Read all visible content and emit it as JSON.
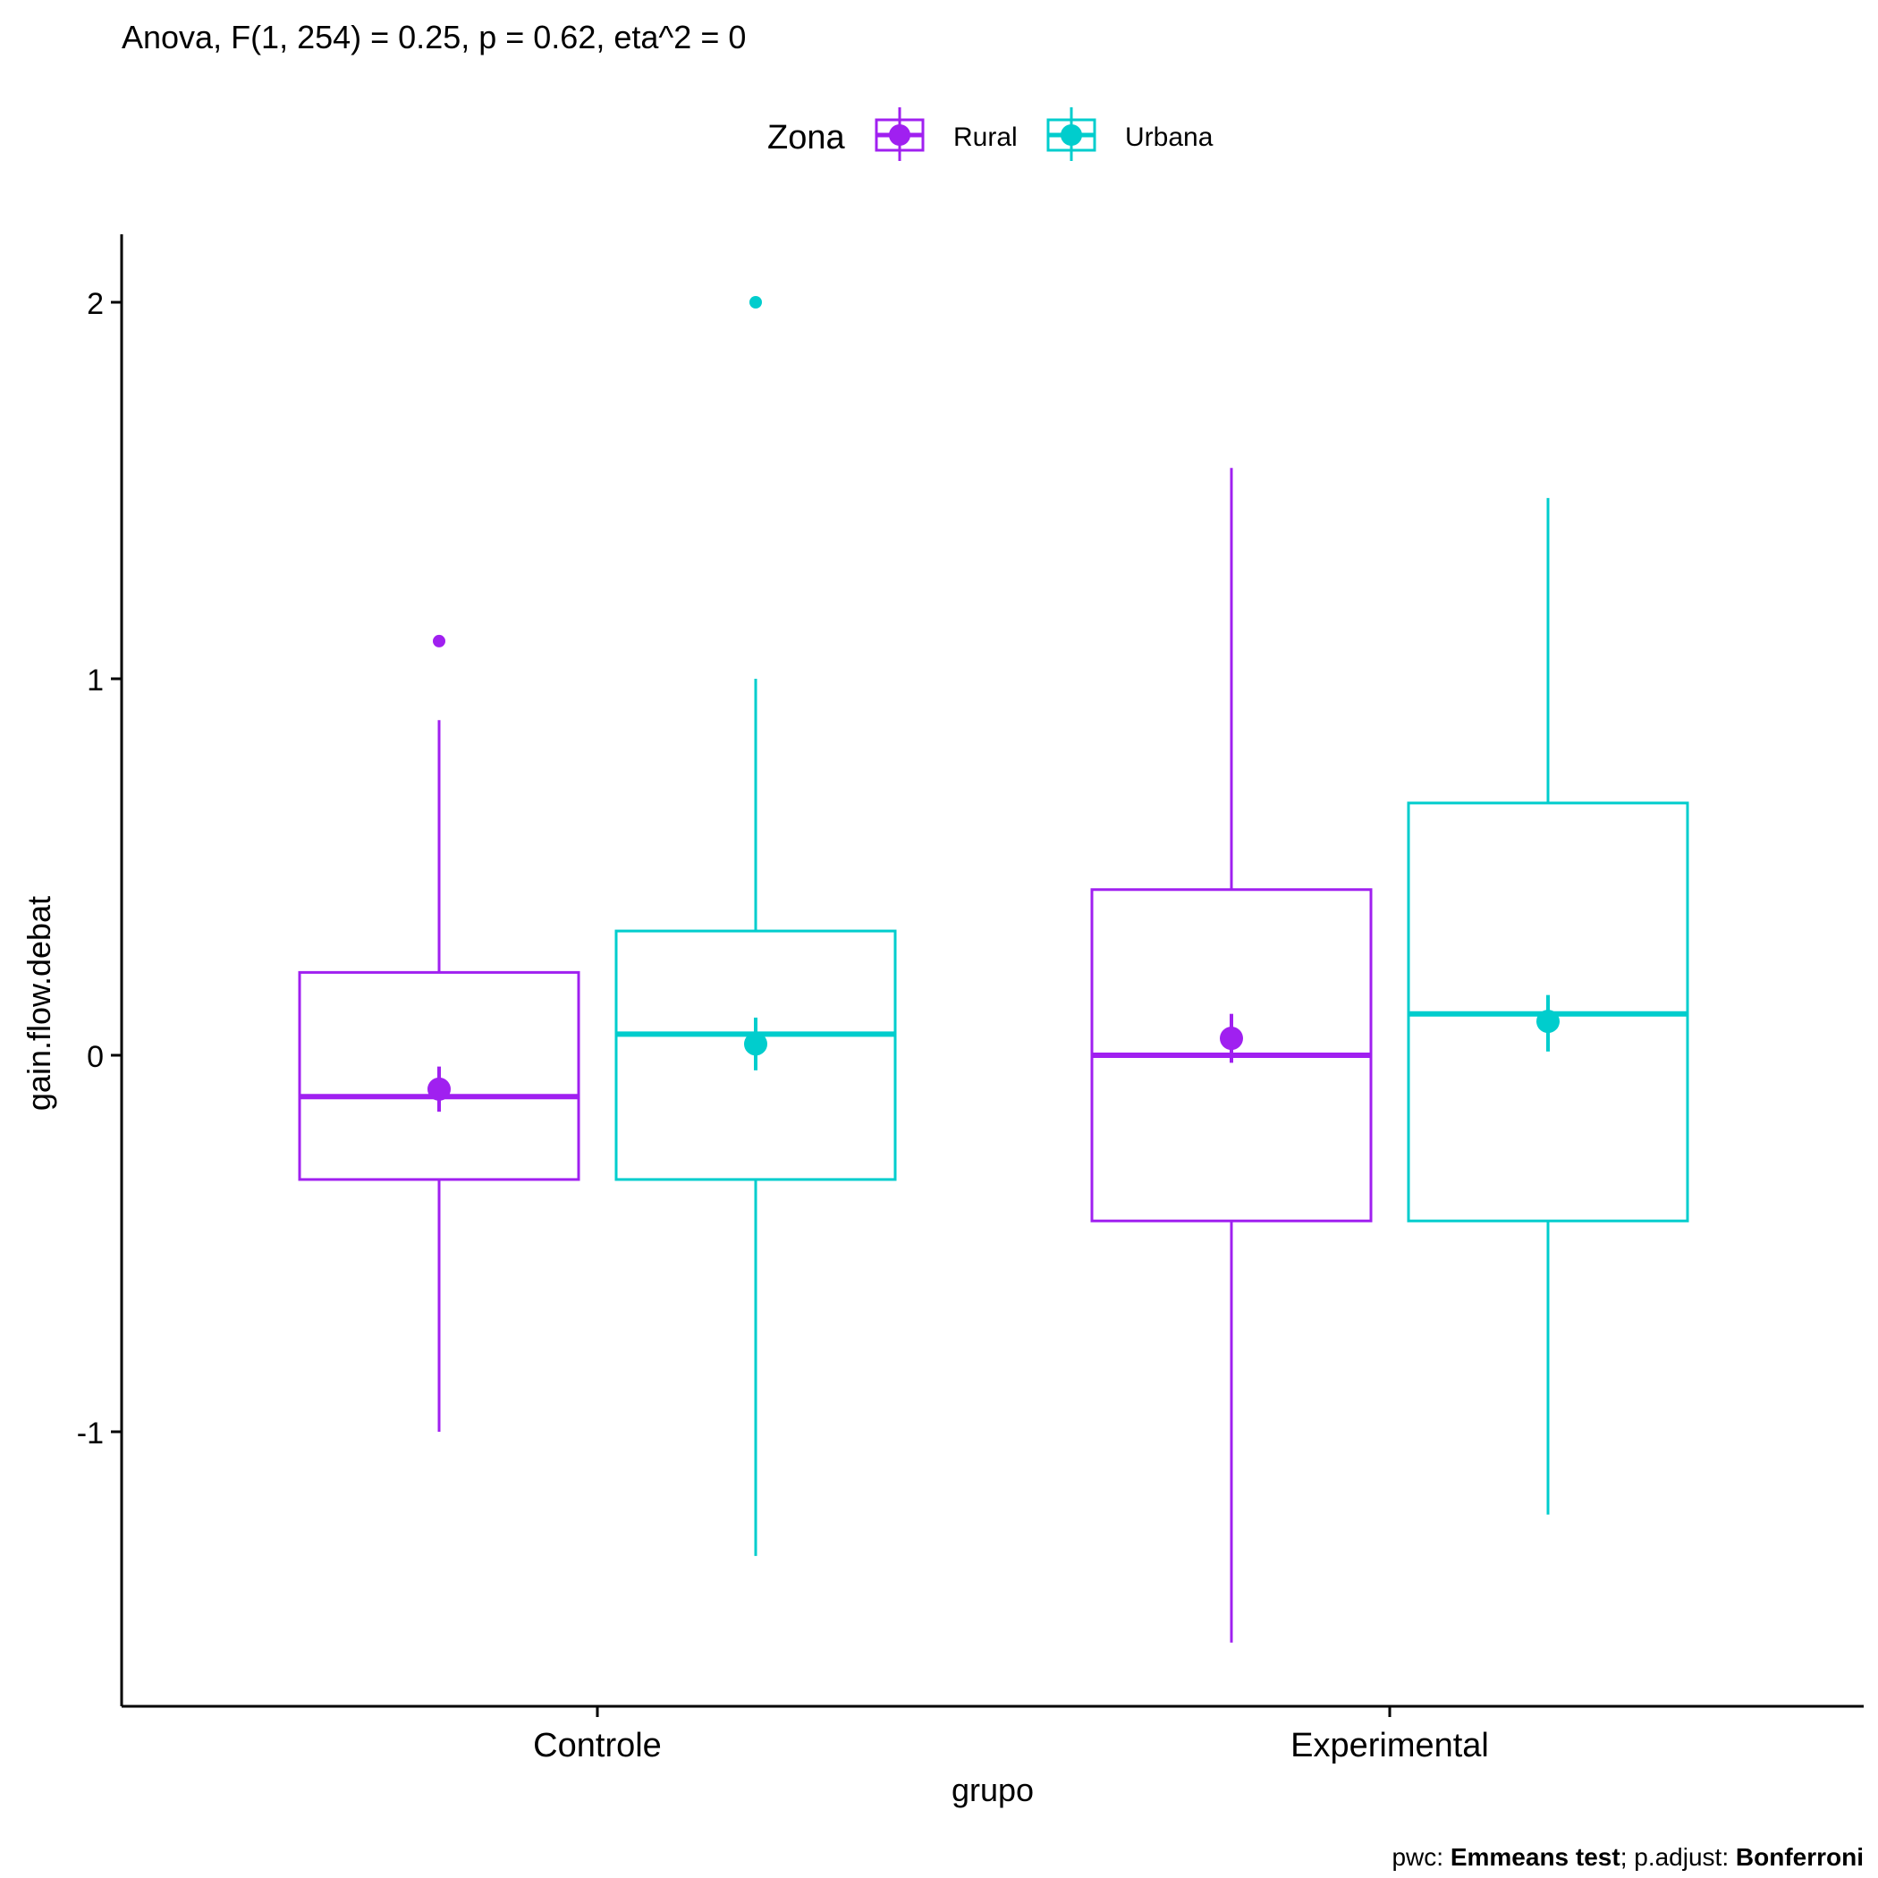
{
  "chart_data": {
    "type": "boxplot",
    "title": "Anova, F(1, 254) = 0.25, p = 0.62, eta^2 = 0",
    "xlabel": "grupo",
    "ylabel": "gain.flow.debat",
    "categories": [
      "Controle",
      "Experimental"
    ],
    "ylim": [
      -1.75,
      2.2
    ],
    "yticks": [
      -1,
      0,
      1,
      2
    ],
    "legend": {
      "title": "Zona",
      "position": "top",
      "entries": [
        "Rural",
        "Urbana"
      ]
    },
    "colors": {
      "Rural": "#A020F0",
      "Urbana": "#00CDCD"
    },
    "series": [
      {
        "name": "Rural",
        "boxes": [
          {
            "category": "Controle",
            "min": -1.0,
            "q1": -0.33,
            "median": -0.11,
            "q3": 0.22,
            "max": 0.89,
            "outliers": [
              1.1
            ],
            "mean": -0.09,
            "mean_ci": [
              -0.15,
              -0.03
            ]
          },
          {
            "category": "Experimental",
            "min": -1.56,
            "q1": -0.44,
            "median": 0.0,
            "q3": 0.44,
            "max": 1.56,
            "outliers": [],
            "mean": 0.045,
            "mean_ci": [
              -0.02,
              0.11
            ]
          }
        ]
      },
      {
        "name": "Urbana",
        "boxes": [
          {
            "category": "Controle",
            "min": -1.33,
            "q1": -0.33,
            "median": 0.056,
            "q3": 0.33,
            "max": 1.0,
            "outliers": [
              2.0
            ],
            "mean": 0.03,
            "mean_ci": [
              -0.04,
              0.1
            ]
          },
          {
            "category": "Experimental",
            "min": -1.22,
            "q1": -0.44,
            "median": 0.11,
            "q3": 0.67,
            "max": 1.48,
            "outliers": [],
            "mean": 0.09,
            "mean_ci": [
              0.01,
              0.16
            ]
          }
        ]
      }
    ],
    "caption": {
      "prefix1": "pwc: ",
      "bold1": "Emmeans test",
      "prefix2": "; p.adjust: ",
      "bold2": "Bonferroni"
    }
  }
}
